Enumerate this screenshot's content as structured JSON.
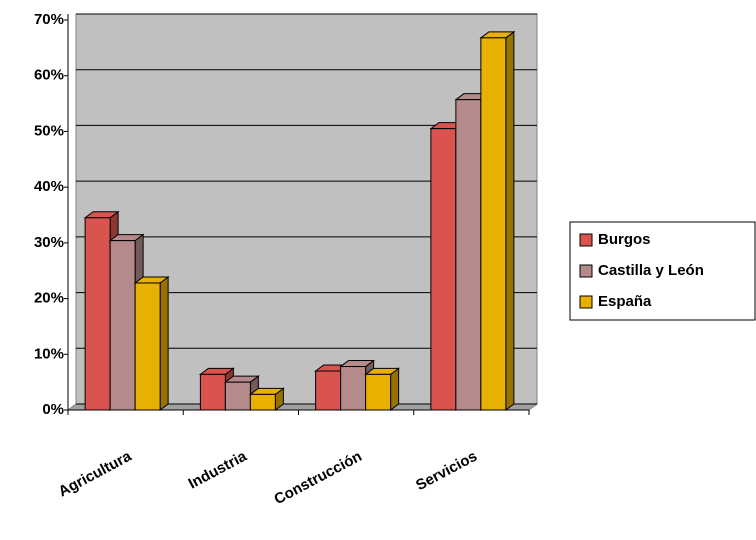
{
  "chart_data": {
    "type": "bar3d",
    "categories": [
      "Agricultura",
      "Industria",
      "Construcción",
      "Servicios"
    ],
    "series": [
      {
        "name": "Burgos",
        "color": "#d9534f",
        "values": [
          34.5,
          6.4,
          7,
          50.5
        ]
      },
      {
        "name": "Castilla y León",
        "color": "#b48a8a",
        "values": [
          30.4,
          5,
          7.8,
          55.7
        ]
      },
      {
        "name": "España",
        "color": "#e8b000",
        "values": [
          22.8,
          2.8,
          6.4,
          66.8
        ]
      }
    ],
    "ylim": [
      0,
      70
    ],
    "yticks": [
      {
        "value": 0,
        "label": "0%"
      },
      {
        "value": 10,
        "label": "10%"
      },
      {
        "value": 20,
        "label": "20%"
      },
      {
        "value": 30,
        "label": "30%"
      },
      {
        "value": 40,
        "label": "40%"
      },
      {
        "value": 50,
        "label": "50%"
      },
      {
        "value": 60,
        "label": "60%"
      },
      {
        "value": 70,
        "label": "70%"
      }
    ],
    "grid": true,
    "legend": "right"
  }
}
